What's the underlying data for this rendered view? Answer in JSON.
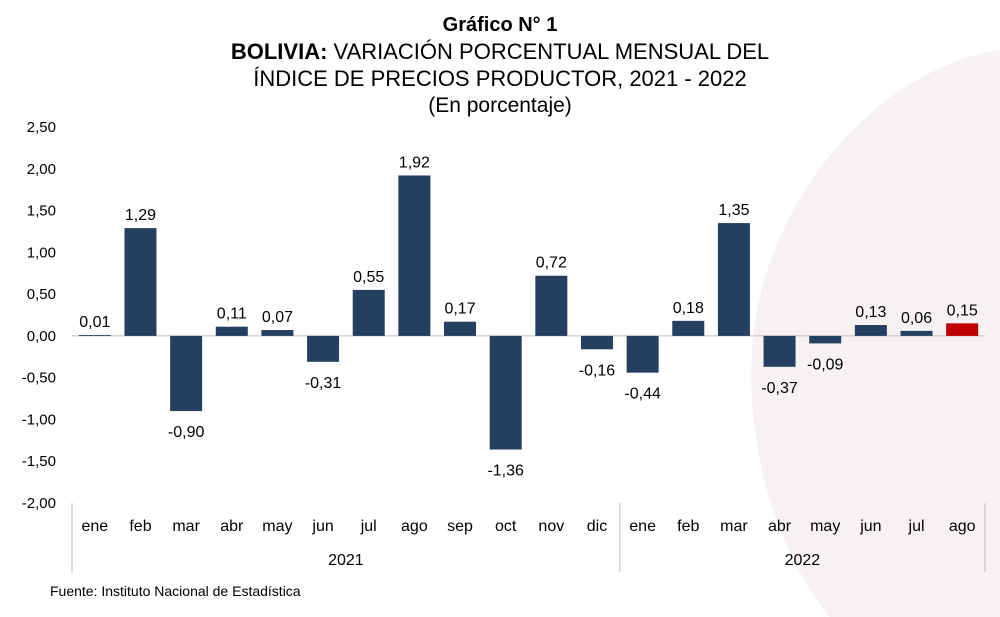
{
  "titles": {
    "line1": "Gráfico N° 1",
    "line2_bold": "BOLIVIA:",
    "line2_rest": " VARIACIÓN PORCENTUAL MENSUAL DEL",
    "line3": "ÍNDICE DE PRECIOS PRODUCTOR, 2021 - 2022",
    "line4": "(En porcentaje)"
  },
  "source": "Fuente: Instituto Nacional de Estadística",
  "colors": {
    "bar": "#243f60",
    "highlight": "#c00000",
    "axis": "#bfbfbf",
    "background_shape": "#f7f2f2"
  },
  "chart_data": {
    "type": "bar",
    "title": "",
    "xlabel": "",
    "ylabel": "",
    "ylim": [
      -2.0,
      2.5
    ],
    "yticks": [
      "2,50",
      "2,00",
      "1,50",
      "1,00",
      "0,50",
      "0,00",
      "-0,50",
      "-1,00",
      "-1,50",
      "-2,00"
    ],
    "ytick_values": [
      2.5,
      2.0,
      1.5,
      1.0,
      0.5,
      0.0,
      -0.5,
      -1.0,
      -1.5,
      -2.0
    ],
    "categories": [
      "ene",
      "feb",
      "mar",
      "abr",
      "may",
      "jun",
      "jul",
      "ago",
      "sep",
      "oct",
      "nov",
      "dic",
      "ene",
      "feb",
      "mar",
      "abr",
      "may",
      "jun",
      "jul",
      "ago"
    ],
    "groups": [
      {
        "label": "2021",
        "count": 12
      },
      {
        "label": "2022",
        "count": 8
      }
    ],
    "values": [
      0.01,
      1.29,
      -0.9,
      0.11,
      0.07,
      -0.31,
      0.55,
      1.92,
      0.17,
      -1.36,
      0.72,
      -0.16,
      -0.44,
      0.18,
      1.35,
      -0.37,
      -0.09,
      0.13,
      0.06,
      0.15
    ],
    "labels": [
      "0,01",
      "1,29",
      "-0,90",
      "0,11",
      "0,07",
      "-0,31",
      "0,55",
      "1,92",
      "0,17",
      "-1,36",
      "0,72",
      "-0,16",
      "-0,44",
      "0,18",
      "1,35",
      "-0,37",
      "-0,09",
      "0,13",
      "0,06",
      "0,15"
    ],
    "highlight_index": 19,
    "grid": false,
    "legend": "none"
  }
}
